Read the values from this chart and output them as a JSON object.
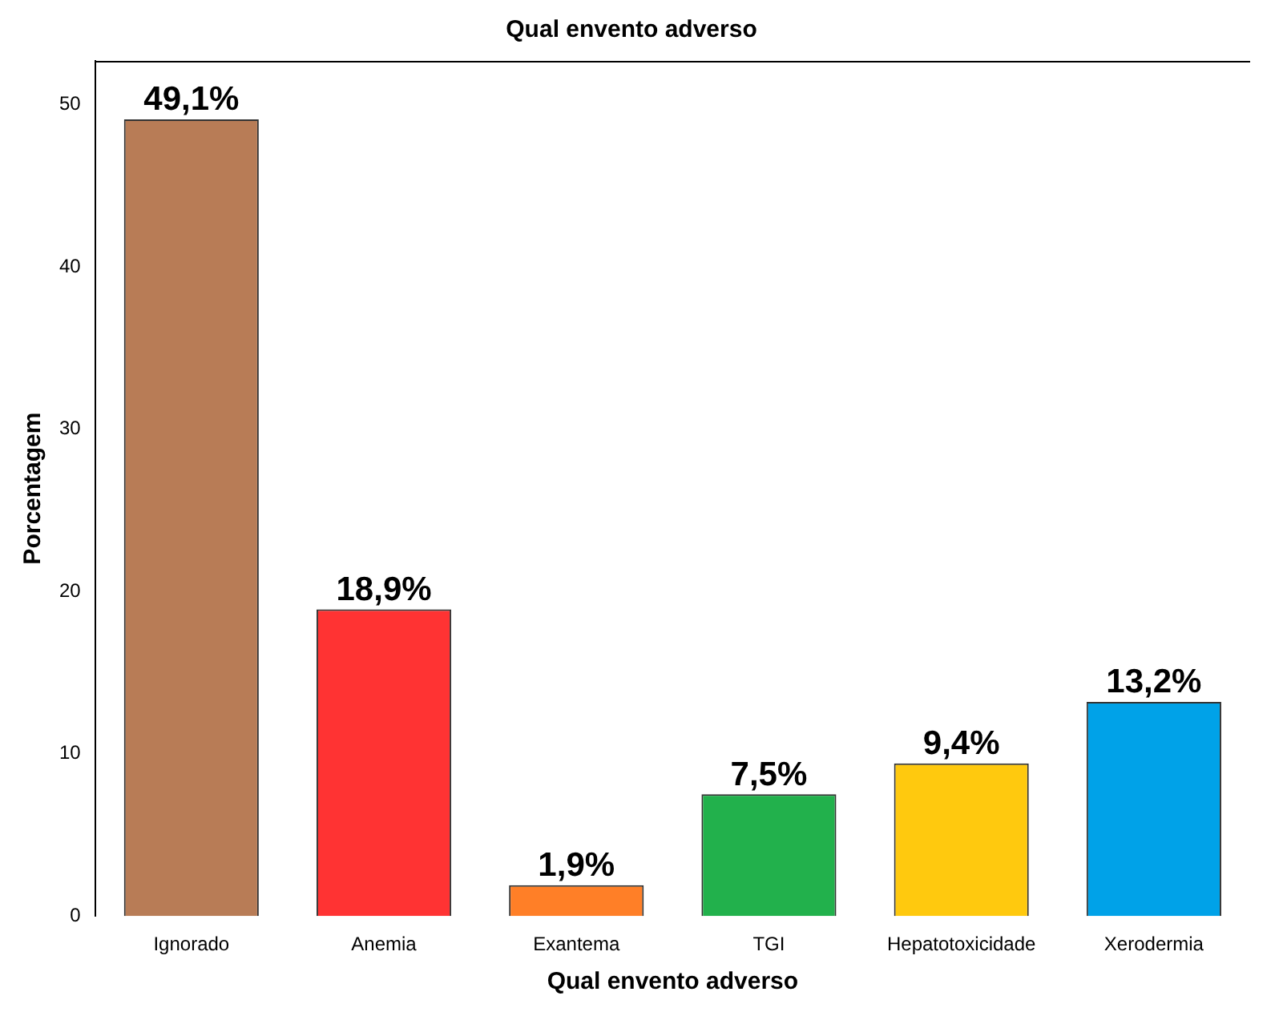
{
  "chart_data": {
    "type": "bar",
    "title": "Qual envento adverso",
    "xlabel": "Qual envento adverso",
    "ylabel": "Porcentagem",
    "categories": [
      "Ignorado",
      "Anemia",
      "Exantema",
      "TGI",
      "Hepatotoxicidade",
      "Xerodermia"
    ],
    "values": [
      49.1,
      18.9,
      1.9,
      7.5,
      9.4,
      13.2
    ],
    "colors": [
      "#b87c56",
      "#ff3333",
      "#ff7f27",
      "#22b14c",
      "#ffc90e",
      "#00a2e8"
    ],
    "value_labels": [
      "49,1%",
      "18,9%",
      "1,9%",
      "7,5%",
      "9,4%",
      "13,2%"
    ],
    "ylim": [
      0,
      52.7
    ],
    "yticks": [
      0,
      10,
      20,
      30,
      40,
      50
    ],
    "grid": false,
    "legend": false
  }
}
